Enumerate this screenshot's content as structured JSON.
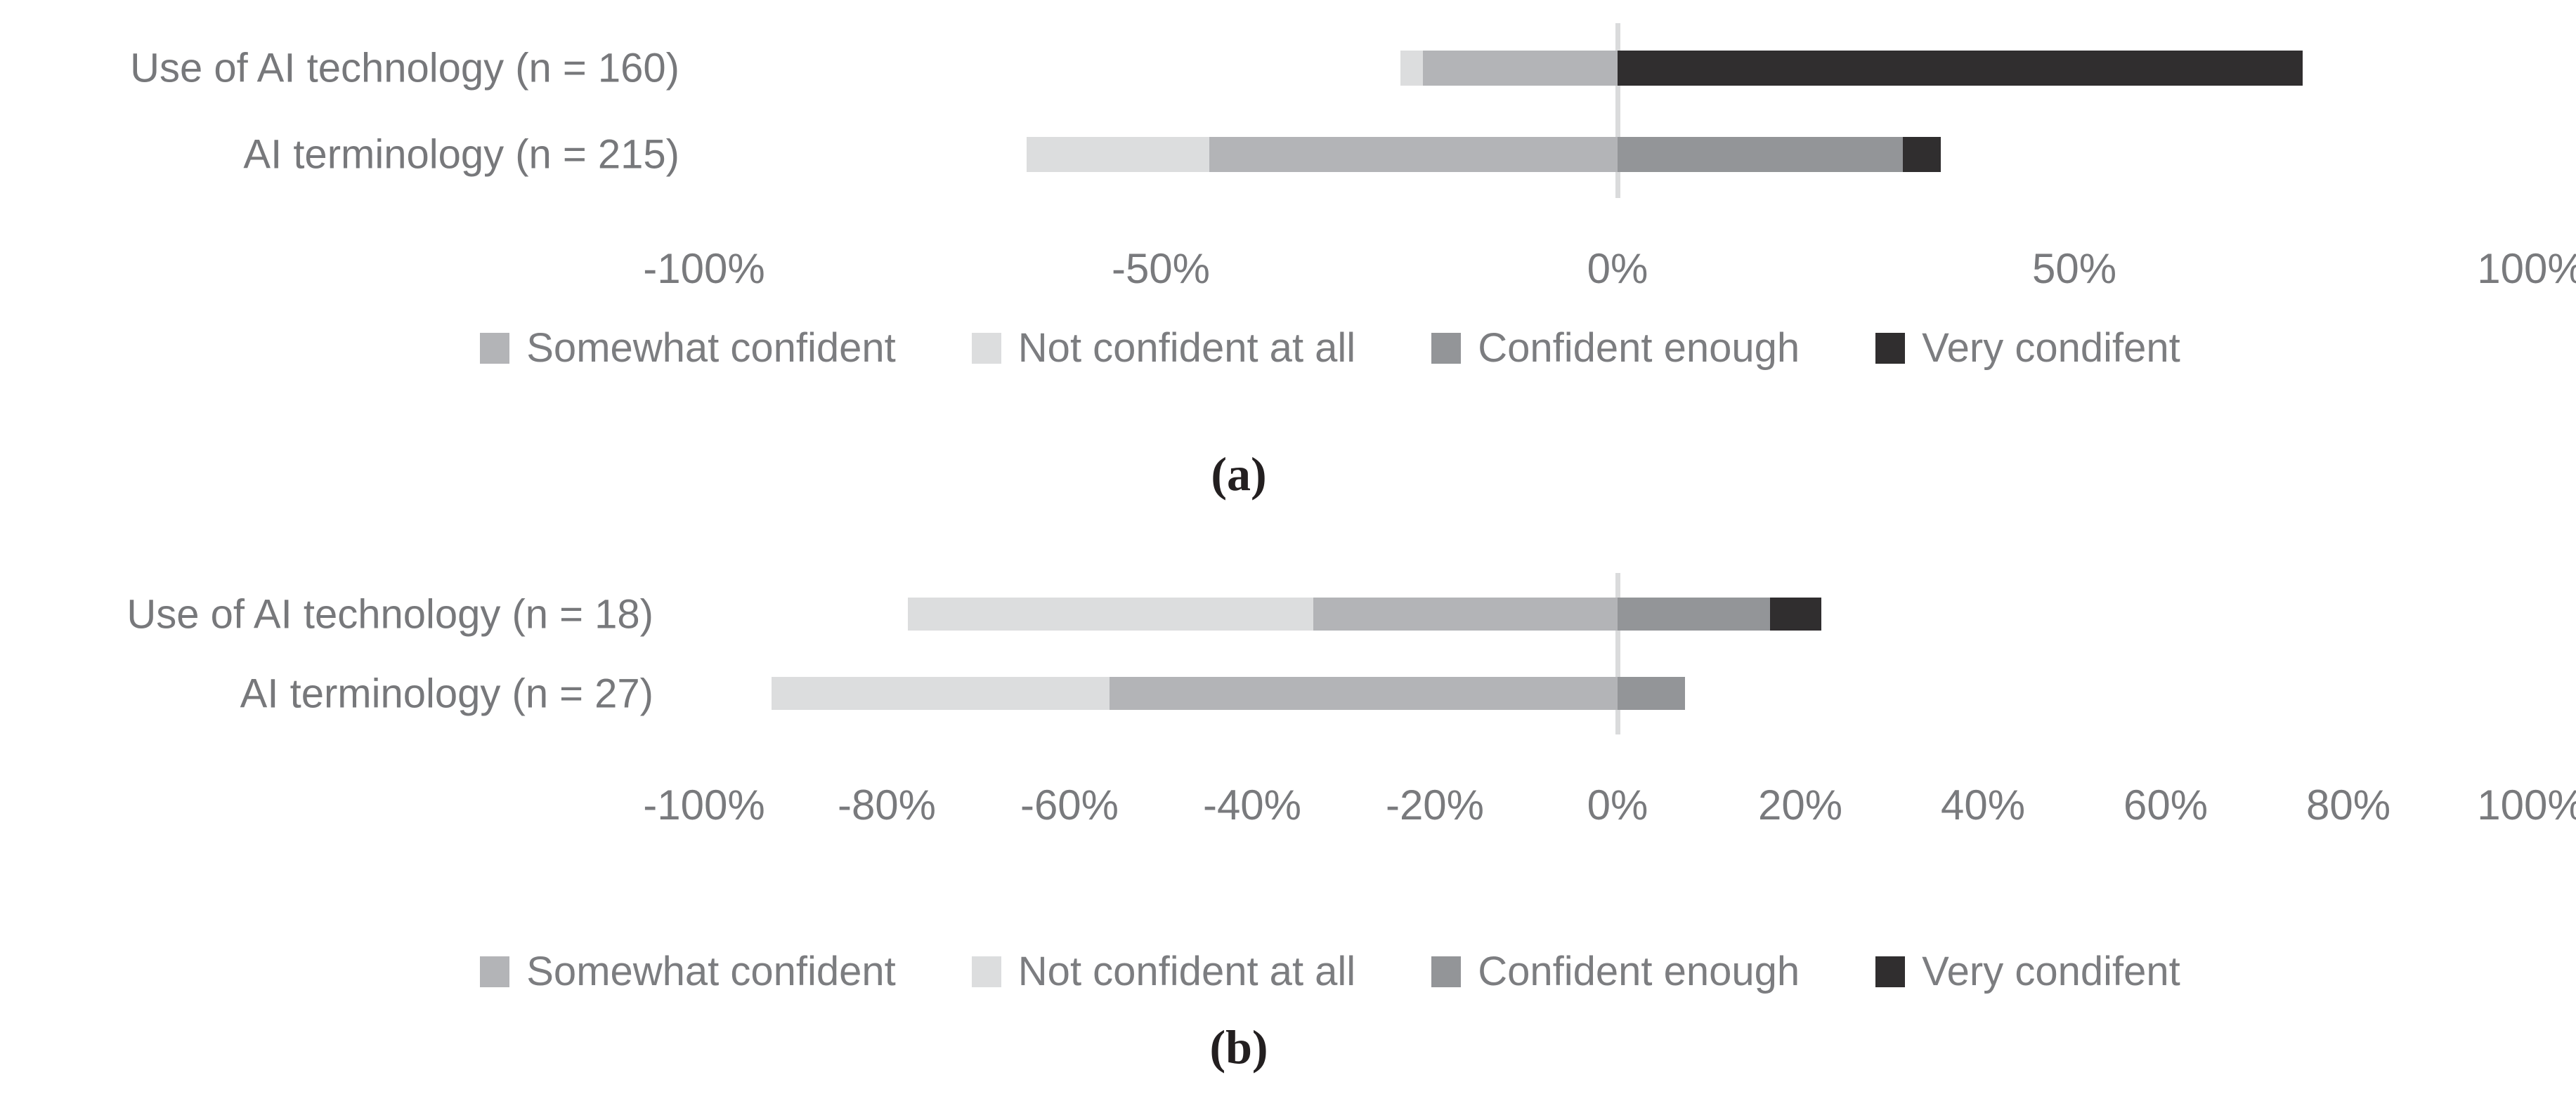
{
  "figure_background": "#ffffff",
  "palette": {
    "not_confident_at_all": "#dcddde",
    "somewhat_confident": "#b3b4b7",
    "confident_enough": "#939598",
    "very_confident": "#302e2f",
    "zero_gridline": "#dadbdc",
    "label_text": "#77787b",
    "axis_text": "#797a7d",
    "caption_text": "#231f20"
  },
  "chart_data": [
    {
      "type": "bar",
      "variant": "diverging-stacked-horizontal",
      "caption": "(a)",
      "categories": [
        "Use of AI technology (n = 160)",
        "AI terminology (n = 215)"
      ],
      "series": [
        {
          "key": "somewhat-confident",
          "name": "Somewhat confident",
          "color": "#b3b4b7",
          "side": "negative",
          "values": [
            21.3,
            44.7
          ]
        },
        {
          "key": "not-confident-at-all",
          "name": "Not confident at all",
          "color": "#dcddde",
          "side": "negative",
          "values": [
            2.5,
            20.0
          ]
        },
        {
          "key": "confident-enough",
          "name": "Confident enough",
          "color": "#939598",
          "side": "positive",
          "values": [
            0,
            31.2
          ]
        },
        {
          "key": "very-confident",
          "name": "Very condifent",
          "color": "#302e2f",
          "side": "positive",
          "values": [
            75.0,
            4.2
          ]
        }
      ],
      "xlim": [
        -100,
        100
      ],
      "tick_step": 50,
      "ticks": [
        {
          "value": -100,
          "label": "-100%"
        },
        {
          "value": -50,
          "label": "-50%"
        },
        {
          "value": 0,
          "label": "0%"
        },
        {
          "value": 50,
          "label": "50%"
        },
        {
          "value": 100,
          "label": "100%"
        }
      ],
      "grid": "zero-line-only",
      "legend_position": "bottom"
    },
    {
      "type": "bar",
      "variant": "diverging-stacked-horizontal",
      "caption": "(b)",
      "categories": [
        "Use of AI technology (n = 18)",
        "AI terminology (n = 27)"
      ],
      "series": [
        {
          "key": "somewhat-confident",
          "name": "Somewhat confident",
          "color": "#b3b4b7",
          "side": "negative",
          "values": [
            33.3,
            55.6
          ]
        },
        {
          "key": "not-confident-at-all",
          "name": "Not confident at all",
          "color": "#dcddde",
          "side": "negative",
          "values": [
            44.4,
            37.0
          ]
        },
        {
          "key": "confident-enough",
          "name": "Confident enough",
          "color": "#939598",
          "side": "positive",
          "values": [
            16.7,
            7.4
          ]
        },
        {
          "key": "very-confident",
          "name": "Very condifent",
          "color": "#302e2f",
          "side": "positive",
          "values": [
            5.6,
            0
          ]
        }
      ],
      "xlim": [
        -100,
        100
      ],
      "tick_step": 20,
      "ticks": [
        {
          "value": -100,
          "label": "-100%"
        },
        {
          "value": -80,
          "label": "-80%"
        },
        {
          "value": -60,
          "label": "-60%"
        },
        {
          "value": -40,
          "label": "-40%"
        },
        {
          "value": -20,
          "label": "-20%"
        },
        {
          "value": 0,
          "label": "0%"
        },
        {
          "value": 20,
          "label": "20%"
        },
        {
          "value": 40,
          "label": "40%"
        },
        {
          "value": 60,
          "label": "60%"
        },
        {
          "value": 80,
          "label": "80%"
        },
        {
          "value": 100,
          "label": "100%"
        }
      ],
      "grid": "zero-line-only",
      "legend_position": "bottom"
    }
  ]
}
